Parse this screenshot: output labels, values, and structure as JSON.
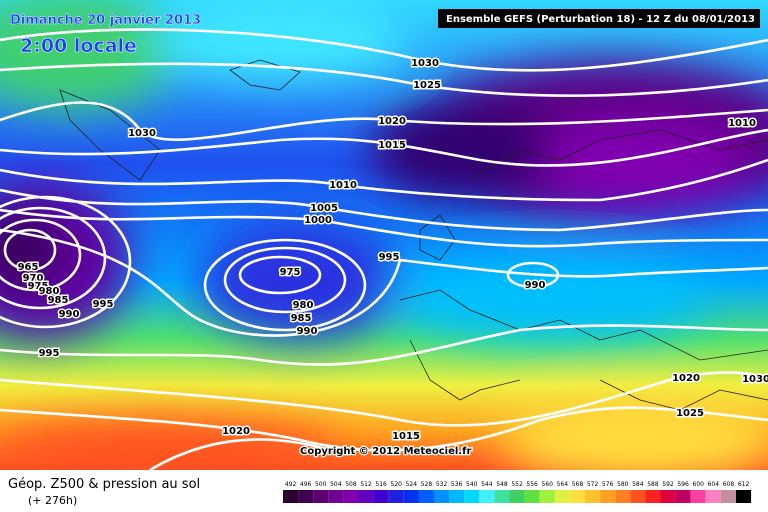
{
  "header": {
    "date": "Dimanche 20 janvier 2013",
    "time": "2:00 locale",
    "model": "Ensemble GEFS (Perturbation 18)  -  12 Z du 08/01/2013"
  },
  "copyright": "Copyright © 2012 Meteociel.fr",
  "isobar_labels": [
    "1030",
    "1025",
    "1020",
    "1015",
    "1010",
    "1030",
    "1010",
    "1005",
    "1000",
    "995",
    "990",
    "975",
    "980",
    "985",
    "990",
    "965",
    "970",
    "975",
    "980",
    "985",
    "995",
    "990",
    "995",
    "1020",
    "1030",
    "1025",
    "1020",
    "1015"
  ],
  "footer": {
    "title": "Géop. Z500 & pression au sol",
    "lead": "(+ 276h)"
  },
  "legend": {
    "values": [
      492,
      496,
      500,
      504,
      508,
      512,
      516,
      520,
      524,
      528,
      532,
      536,
      540,
      544,
      548,
      552,
      556,
      560,
      564,
      568,
      572,
      576,
      580,
      584,
      588,
      592,
      596,
      600,
      604,
      608,
      612
    ],
    "colors": [
      "#2a0030",
      "#400050",
      "#5a0070",
      "#700090",
      "#8000b0",
      "#6000c0",
      "#4000d0",
      "#2020e0",
      "#0030f0",
      "#0060ff",
      "#0090ff",
      "#00b8ff",
      "#00d8ff",
      "#40f0ff",
      "#40e0a0",
      "#40d060",
      "#60e040",
      "#a0f040",
      "#e0f040",
      "#ffe040",
      "#ffc030",
      "#ffa020",
      "#ff8020",
      "#ff5020",
      "#ff2020",
      "#e00040",
      "#c00060",
      "#ff40a0",
      "#ff80c0",
      "#c090a0",
      "#000000"
    ]
  }
}
